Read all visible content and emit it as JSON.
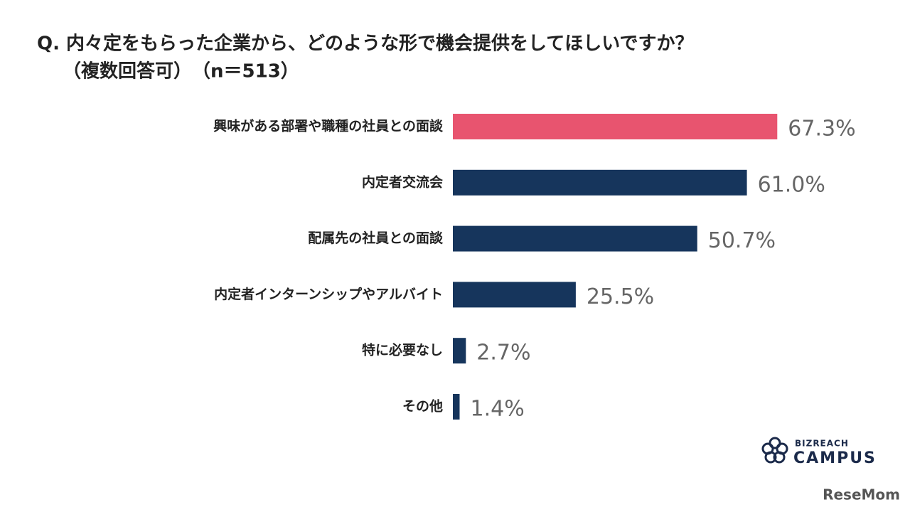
{
  "chart_data": {
    "type": "bar",
    "orientation": "horizontal",
    "title": "Q. 内々定をもらった企業から、どのような形で機会提供をしてほしいですか？",
    "subtitle": "（複数回答可）　（n＝513）",
    "categories": [
      "興味がある部署や職種の社員との面談",
      "内定者交流会",
      "配属先の社員との面談",
      "内定者インターンシップやアルバイト",
      "特に必要なし",
      "その他"
    ],
    "values": [
      67.3,
      61.0,
      50.7,
      25.5,
      2.7,
      1.4
    ],
    "value_labels": [
      "67.3%",
      "61.0%",
      "50.7%",
      "25.5%",
      "2.7%",
      "1.4%"
    ],
    "colors": [
      "#e8546f",
      "#16355c",
      "#16355c",
      "#16355c",
      "#16355c",
      "#16355c"
    ]
  },
  "logo": {
    "brand_top": "BIZREACH",
    "brand": "CAMPUS",
    "source": "ReseMom"
  }
}
